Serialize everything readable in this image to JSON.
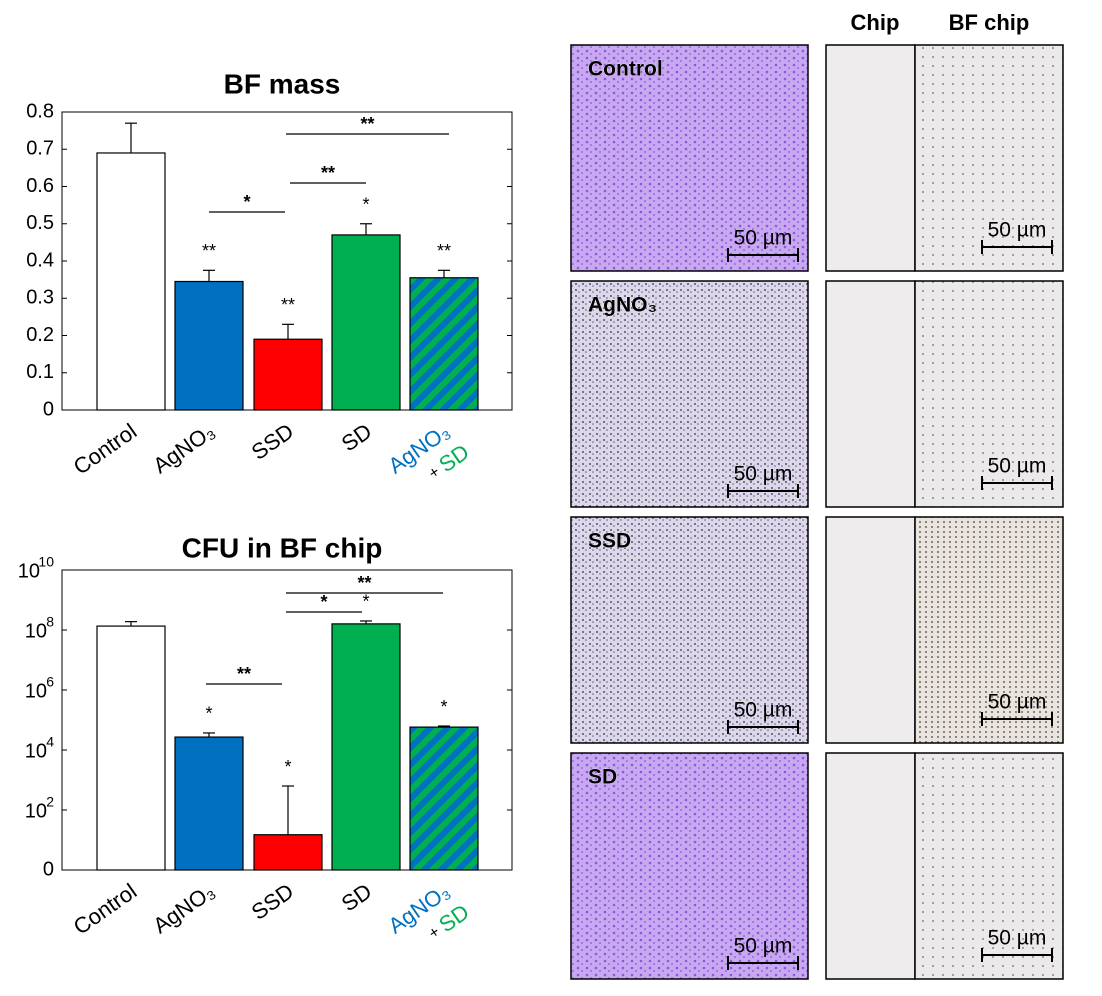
{
  "chart_data": [
    {
      "type": "bar",
      "title": "BF mass",
      "categories": [
        "Control",
        "AgNO₃",
        "SSD",
        "SD",
        "AgNO₃ + SD"
      ],
      "category_colors": [
        "#000000",
        "#0070c0",
        "#ff0000",
        "#00b050",
        "#0070c0"
      ],
      "values": [
        0.69,
        0.345,
        0.19,
        0.47,
        0.355
      ],
      "errors": [
        0.08,
        0.03,
        0.04,
        0.03,
        0.02
      ],
      "colors": [
        "#ffffff",
        "#0070c0",
        "#ff0000",
        "#00b050",
        "hatched"
      ],
      "significance": [
        null,
        "**",
        "**",
        "*",
        "**"
      ],
      "comparisons": [
        "*",
        "**",
        "**"
      ],
      "ylim": [
        0,
        0.8
      ],
      "yticks": [
        0,
        0.1,
        0.2,
        0.3,
        0.4,
        0.5,
        0.6,
        0.7,
        0.8
      ]
    },
    {
      "type": "bar",
      "title": "CFU in BF chip",
      "log_scale": true,
      "categories": [
        "Control",
        "AgNO₃",
        "SSD",
        "SD",
        "AgNO₃ + SD"
      ],
      "category_colors": [
        "#000000",
        "#0070c0",
        "#ff0000",
        "#00b050",
        "#0070c0"
      ],
      "values": [
        135000000,
        27000,
        15,
        160000000,
        58000
      ],
      "errors": [
        55000000,
        10000,
        615,
        40000000,
        5000
      ],
      "colors": [
        "#ffffff",
        "#0070c0",
        "#ff0000",
        "#00b050",
        "hatched"
      ],
      "significance": [
        null,
        "*",
        "*",
        "*",
        "*"
      ],
      "comparisons": [
        "**",
        "*",
        "**"
      ],
      "ylim": [
        1,
        10000000000
      ],
      "yticks": [
        {
          "value": 1,
          "label": "0"
        },
        {
          "value": 100,
          "label": "10",
          "exponent": "2"
        },
        {
          "value": 10000,
          "label": "10",
          "exponent": "4"
        },
        {
          "value": 1000000,
          "label": "10",
          "exponent": "6"
        },
        {
          "value": 100000000,
          "label": "10",
          "exponent": "8"
        },
        {
          "value": 10000000000,
          "label": "10",
          "exponent": "10"
        }
      ]
    }
  ],
  "images": {
    "columns": [
      "Chip",
      "BF chip"
    ],
    "rows": [
      "Control",
      "AgNO₃",
      "SSD",
      "SD"
    ],
    "row_colors": [
      "#000000",
      "#0070c0",
      "#ff0000",
      "#556b2f"
    ],
    "scale_bar": "50 µm"
  }
}
